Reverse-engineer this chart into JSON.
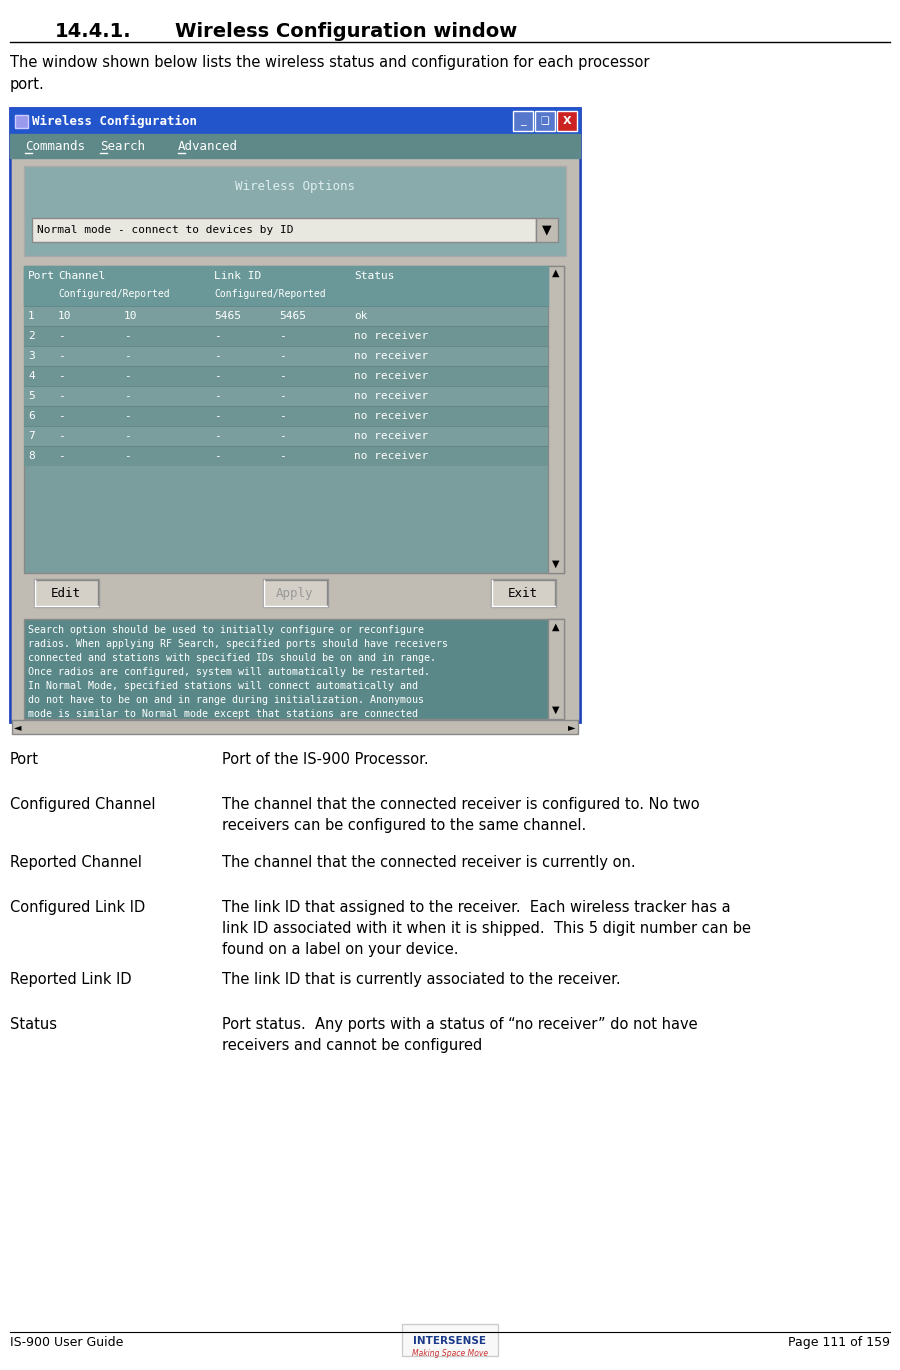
{
  "intro_text": "The window shown below lists the wireless status and configuration for each processor\nport.",
  "window_title": "Wireless Configuration",
  "menu_items": [
    "Commands",
    "Search",
    "Advanced"
  ],
  "wireless_options_label": "Wireless Options",
  "dropdown_text": "Normal mode - connect to devices by ID",
  "table_data": [
    [
      "1",
      "10",
      "10",
      "5465",
      "5465",
      "ok"
    ],
    [
      "2",
      "-",
      "-",
      "-",
      "-",
      "no receiver"
    ],
    [
      "3",
      "-",
      "-",
      "-",
      "-",
      "no receiver"
    ],
    [
      "4",
      "-",
      "-",
      "-",
      "-",
      "no receiver"
    ],
    [
      "5",
      "-",
      "-",
      "-",
      "-",
      "no receiver"
    ],
    [
      "6",
      "-",
      "-",
      "-",
      "-",
      "no receiver"
    ],
    [
      "7",
      "-",
      "-",
      "-",
      "-",
      "no receiver"
    ],
    [
      "8",
      "-",
      "-",
      "-",
      "-",
      "no receiver"
    ]
  ],
  "buttons": [
    "Edit",
    "Apply",
    "Exit"
  ],
  "scrollbox_text": "Search option should be used to initially configure or reconfigure\nradios. When applying RF Search, specified ports should have receivers\nconnected and stations with specified IDs should be on and in range.\nOnce radios are configured, system will automatically be restarted.\nIn Normal Mode, specified stations will connect automatically and\ndo not have to be on and in range during initialization. Anonymous\nmode is similar to Normal mode except that stations are connected",
  "definitions": [
    [
      "Port",
      "Port of the IS-900 Processor."
    ],
    [
      "Configured Channel",
      "The channel that the connected receiver is configured to. No two\nreceivers can be configured to the same channel."
    ],
    [
      "Reported Channel",
      "The channel that the connected receiver is currently on."
    ],
    [
      "Configured Link ID",
      "The link ID that assigned to the receiver.  Each wireless tracker has a\nlink ID associated with it when it is shipped.  This 5 digit number can be\nfound on a label on your device."
    ],
    [
      "Reported Link ID",
      "The link ID that is currently associated to the receiver."
    ],
    [
      "Status",
      "Port status.  Any ports with a status of “no receiver” do not have\nreceivers and cannot be configured"
    ]
  ],
  "footer_left": "IS-900 User Guide",
  "footer_right": "Page 111 of 159",
  "bg_color": "#ffffff",
  "title_bar_color": "#2255cc",
  "menu_bar_color": "#5f8888",
  "panel_bg_color": "#8aabab",
  "table_header_color": "#6a9898",
  "table_row_even_bg": "#7a9e9e",
  "table_row_odd_bg": "#6e9494",
  "scrollbox_bg": "#5a8888",
  "button_bg": "#d4d0c8",
  "outer_win_bg": "#c8c8c8",
  "inner_panel_bg": "#c0bcb4"
}
